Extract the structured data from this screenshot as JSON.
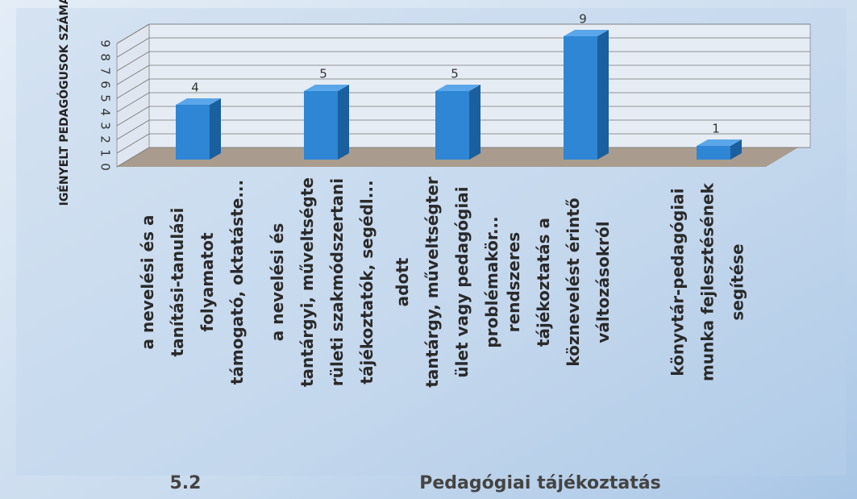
{
  "chart_data": {
    "type": "bar3d",
    "ylabel": "IGÉNYELT PEDAGÓGUSOK SZÁMA",
    "categories": [
      [
        "a nevelési és a",
        "tanítási-tanulási",
        "folyamatot",
        "támogató, oktatáste..."
      ],
      [
        "a nevelési és",
        "tantárgyi, műveltségte",
        "rületi szakmódszertani",
        "tájékoztatók, segédl..."
      ],
      [
        "adott",
        "tantárgy, műveltségter",
        "ület vagy pedagógiai",
        "problémakör..."
      ],
      [
        "rendszeres",
        "tájékoztatás a",
        "köznevelést érintő",
        "változásokról"
      ],
      [
        "könyvtár-pedagógiai",
        "munka fejlesztésének",
        "segítése"
      ]
    ],
    "values": [
      4,
      5,
      5,
      9,
      1
    ],
    "color": "#2e86d4",
    "ylim": [
      0,
      9
    ],
    "yticks": [
      0,
      1,
      2,
      3,
      4,
      5,
      6,
      7,
      8,
      9
    ],
    "grid": true,
    "section_number": "5.2",
    "title": "Pedagógiai tájékoztatás"
  }
}
